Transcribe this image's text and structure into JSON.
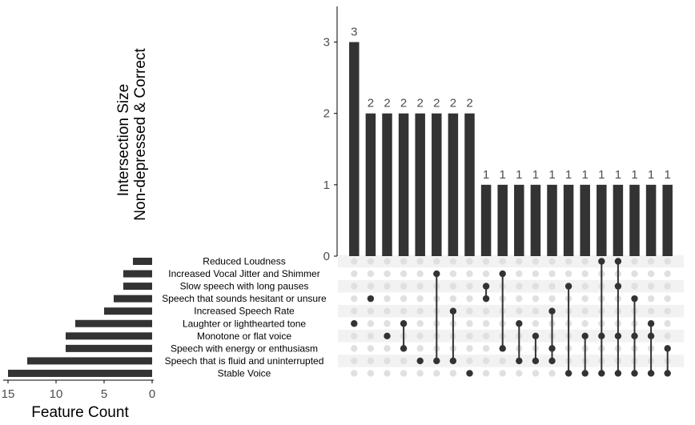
{
  "chart_data": {
    "type": "upset",
    "ylabel_line1": "Intersection Size",
    "ylabel_line2": "Non-depressed & Correct",
    "xlabel_sets": "Feature Count",
    "y_ticks": [
      "0",
      "1",
      "2",
      "3"
    ],
    "ylim": [
      0,
      3.5
    ],
    "set_ticks": [
      "15",
      "10",
      "5",
      "0"
    ],
    "set_xlim": [
      0,
      15.5
    ],
    "sets": [
      {
        "name": "Reduced Loudness",
        "count": 2
      },
      {
        "name": "Increased Vocal Jitter and Shimmer",
        "count": 3
      },
      {
        "name": "Slow speech with long pauses",
        "count": 3
      },
      {
        "name": "Speech that sounds hesitant or unsure",
        "count": 4
      },
      {
        "name": "Increased Speech Rate",
        "count": 5
      },
      {
        "name": "Laughter or lighthearted tone",
        "count": 8
      },
      {
        "name": "Monotone or flat voice",
        "count": 9
      },
      {
        "name": "Speech with energy or enthusiasm",
        "count": 9
      },
      {
        "name": "Speech that is fluid and uninterrupted",
        "count": 13
      },
      {
        "name": "Stable Voice",
        "count": 15
      }
    ],
    "intersections": [
      {
        "size": 3,
        "label": "3",
        "members": [
          5
        ]
      },
      {
        "size": 2,
        "label": "2",
        "members": [
          3
        ]
      },
      {
        "size": 2,
        "label": "2",
        "members": [
          6
        ]
      },
      {
        "size": 2,
        "label": "2",
        "members": [
          5,
          7
        ]
      },
      {
        "size": 2,
        "label": "2",
        "members": [
          8
        ]
      },
      {
        "size": 2,
        "label": "2",
        "members": [
          1,
          8
        ]
      },
      {
        "size": 2,
        "label": "2",
        "members": [
          4,
          8
        ]
      },
      {
        "size": 2,
        "label": "2",
        "members": [
          9
        ]
      },
      {
        "size": 1,
        "label": "1",
        "members": [
          2,
          3
        ]
      },
      {
        "size": 1,
        "label": "1",
        "members": [
          1,
          7
        ]
      },
      {
        "size": 1,
        "label": "1",
        "members": [
          5,
          8
        ]
      },
      {
        "size": 1,
        "label": "1",
        "members": [
          6,
          8
        ]
      },
      {
        "size": 1,
        "label": "1",
        "members": [
          4,
          7,
          8
        ]
      },
      {
        "size": 1,
        "label": "1",
        "members": [
          2,
          9
        ]
      },
      {
        "size": 1,
        "label": "1",
        "members": [
          6,
          9
        ]
      },
      {
        "size": 1,
        "label": "1",
        "members": [
          0,
          6,
          9
        ]
      },
      {
        "size": 1,
        "label": "1",
        "members": [
          0,
          2,
          6,
          9
        ]
      },
      {
        "size": 1,
        "label": "1",
        "members": [
          3,
          6,
          9
        ]
      },
      {
        "size": 1,
        "label": "1",
        "members": [
          5,
          6,
          9
        ]
      },
      {
        "size": 1,
        "label": "1",
        "members": [
          7,
          9
        ]
      }
    ],
    "colors": {
      "bar": "#333333",
      "dot_active": "#333333",
      "dot_inactive": "#e0e0e0",
      "row_shade": "#f2f2f2",
      "axis": "#000000",
      "tick_text": "#4d4d4d"
    }
  }
}
